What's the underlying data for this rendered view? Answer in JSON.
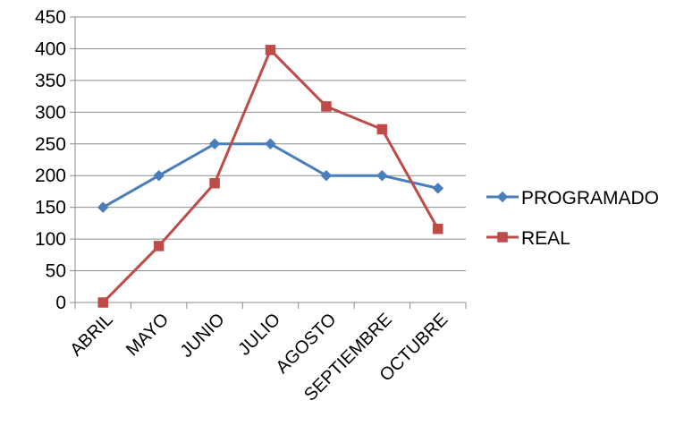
{
  "chart_data": {
    "type": "line",
    "categories": [
      "ABRIL",
      "MAYO",
      "JUNIO",
      "JULIO",
      "AGOSTO",
      "SEPTIEMBRE",
      "OCTUBRE"
    ],
    "series": [
      {
        "name": "PROGRAMADO",
        "values": [
          150,
          200,
          250,
          250,
          200,
          200,
          180
        ],
        "color": "#4a7ebb",
        "marker": "diamond"
      },
      {
        "name": "REAL",
        "values": [
          0,
          89,
          188,
          398,
          309,
          273,
          116
        ],
        "color": "#be4b48",
        "marker": "square"
      }
    ],
    "title": "",
    "xlabel": "",
    "ylabel": "",
    "ylim": [
      0,
      450
    ],
    "yticks": [
      0,
      50,
      100,
      150,
      200,
      250,
      300,
      350,
      400,
      450
    ],
    "grid": true,
    "legend": "right"
  }
}
